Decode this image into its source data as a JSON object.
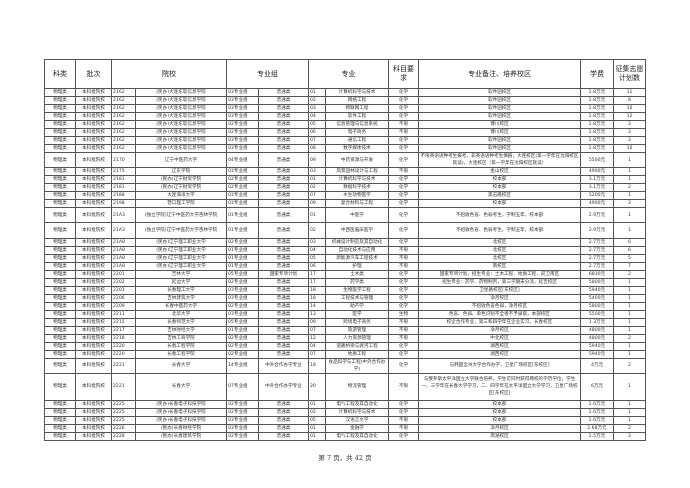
{
  "headers": [
    "科类",
    "批次",
    "院校",
    "专业组",
    "专业",
    "科目要求",
    "专业备注、培养校区",
    "学费",
    "征集志愿计划数"
  ],
  "rows": [
    [
      "物理类",
      "本科批院校",
      "2162",
      "(民办)大连东软信息学院",
      "03专业组",
      "普通类",
      "01",
      "计算机科学与技术",
      "化学",
      "软件园校区",
      "2.8万元",
      "11"
    ],
    [
      "物理类",
      "本科批院校",
      "2162",
      "(民办)大连东软信息学院",
      "03专业组",
      "普通类",
      "02",
      "网络工程",
      "化学",
      "软件园校区",
      "2.8万元",
      "8"
    ],
    [
      "物理类",
      "本科批院校",
      "2162",
      "(民办)大连东软信息学院",
      "03专业组",
      "普通类",
      "03",
      "物联网工程",
      "化学",
      "软件园校区",
      "2.8万元",
      "10"
    ],
    [
      "物理类",
      "本科批院校",
      "2162",
      "(民办)大连东软信息学院",
      "03专业组",
      "普通类",
      "04",
      "软件工程",
      "化学",
      "软件园校区",
      "2.8万元",
      "12"
    ],
    [
      "物理类",
      "本科批院校",
      "2162",
      "(民办)大连东软信息学院",
      "02专业组",
      "普通类",
      "05",
      "信息管理与信息系统",
      "不限",
      "博川校区",
      "2.8万元",
      "3"
    ],
    [
      "物理类",
      "本科批院校",
      "2162",
      "(民办)大连东软信息学院",
      "02专业组",
      "普通类",
      "06",
      "电子商务",
      "不限",
      "博川校区",
      "2.8万元",
      "3"
    ],
    [
      "物理类",
      "本科批院校",
      "2162",
      "(民办)大连东软信息学院",
      "03专业组",
      "普通类",
      "07",
      "通信工程",
      "化学",
      "软件园校区",
      "2.8万元",
      "3"
    ],
    [
      "物理类",
      "本科批院校",
      "2162",
      "(民办)大连东软信息学院",
      "03专业组",
      "普通类",
      "08",
      "数字媒体技术",
      "化学",
      "软件园校区",
      "2.8万元",
      "10"
    ],
    [
      "物理类",
      "本科批院校",
      "2170",
      "辽宁中医药大学",
      "04专业组",
      "普通类",
      "09",
      "中药资源与开发",
      "化学",
      "不限英语语种考生报考，非英语语种考生慎报；大连校区(第一学年在沈阳校区就读)，大连校区（第一学年在沈阳校区就读）",
      "5500元",
      "1"
    ],
    [
      "物理类",
      "本科批院校",
      "2175",
      "辽东学院",
      "03专业组",
      "普通类",
      "03",
      "风景园林设计与工程",
      "不限",
      "金山校区",
      "4900元",
      "1"
    ],
    [
      "物理类",
      "本科批院校",
      "2181",
      "(民办)辽宁财贸学院",
      "02专业组",
      "普通类",
      "01",
      "计算机科学与技术",
      "化学",
      "校本部",
      "3.1万元",
      "1"
    ],
    [
      "物理类",
      "本科批院校",
      "2181",
      "(民办)辽宁财贸学院",
      "02专业组",
      "普通类",
      "02",
      "数据科学技术",
      "化学",
      "校本部",
      "3.1万元",
      "2"
    ],
    [
      "物理类",
      "本科批院校",
      "2188",
      "大连海洋大学",
      "03专业组",
      "普通类",
      "07",
      "水生动物医学",
      "化学",
      "黑石礁校区",
      "5200元",
      "1"
    ],
    [
      "物理类",
      "本科批院校",
      "2198",
      "营口理工学院",
      "03专业组",
      "普通类",
      "09",
      "复合材料与工程",
      "化学",
      "校本部",
      "4900元",
      "3"
    ],
    [
      "物理类",
      "本科批院校",
      "21A3",
      "(独立学院)辽宁中医药大学杏林学院",
      "01专业组",
      "普通类",
      "01",
      "中医学",
      "化学",
      "不招收色盲、色弱考生，学制五年，校本部",
      "2.9万元",
      "1"
    ],
    [
      "物理类",
      "本科批院校",
      "21A3",
      "(独立学院)辽宁中医药大学杏林学院",
      "01专业组",
      "普通类",
      "02",
      "中西医临床医学",
      "化学",
      "不招收色盲、色弱考生，学制五年，校本部",
      "2.9万元",
      "1"
    ],
    [
      "物理类",
      "本科批院校",
      "21A8",
      "(民办)辽宁理工职业大学",
      "02专业组",
      "普通类",
      "03",
      "机械设计制造及其自动化",
      "化学",
      "北校区",
      "2.7万元",
      "6"
    ],
    [
      "物理类",
      "本科批院校",
      "21A8",
      "(民办)辽宁理工职业大学",
      "01专业组",
      "普通类",
      "04",
      "自动化技术与应用",
      "不限",
      "北校区",
      "2.7万元",
      "6"
    ],
    [
      "物理类",
      "本科批院校",
      "21A8",
      "(民办)辽宁理工职业大学",
      "01专业组",
      "普通类",
      "05",
      "新能源汽车工程技术",
      "不限",
      "北校区",
      "2.7万元",
      "5"
    ],
    [
      "物理类",
      "本科批院校",
      "21A8",
      "(民办)辽宁理工职业大学",
      "01专业组",
      "普通类",
      "06",
      "护理",
      "不限",
      "南校区",
      "2.7万元",
      "7"
    ],
    [
      "物理类",
      "本科批院校",
      "2201",
      "吉林大学",
      "05专业组",
      "国家专项计划",
      "17",
      "土木类",
      "化学",
      "国家专项计划，招生专业：土木工程、地质工程，前卫南区",
      "6830元",
      "2"
    ],
    [
      "物理类",
      "本科批院校",
      "2202",
      "延边大学",
      "02专业组",
      "普通类",
      "17",
      "药学类",
      "化学",
      "招生专业：药学、药物制剂，第三学期末分流，延吉校区",
      "5800元",
      "1"
    ],
    [
      "物理类",
      "本科批院校",
      "2203",
      "长春理工大学",
      "03专业组",
      "普通类",
      "18",
      "生物医学工程",
      "化学",
      "卫星路校区[东校区]",
      "5940元",
      "1"
    ],
    [
      "物理类",
      "本科批院校",
      "2206",
      "吉林建筑大学",
      "03专业组",
      "普通类",
      "18",
      "工程技术与管理",
      "化学",
      "净月校区",
      "5400元",
      "1"
    ],
    [
      "物理类",
      "本科批院校",
      "2209",
      "长春中医药大学",
      "02专业组",
      "普通类",
      "14",
      "助产学",
      "化学",
      "不招收色盲色弱，净月校区",
      "5800元",
      "1"
    ],
    [
      "物理类",
      "本科批院校",
      "2211",
      "北华大学",
      "03专业组",
      "普通类",
      "13",
      "医学",
      "生物",
      "色盲、色弱、单色识别不全者不予录取，本部校区",
      "5500元",
      "1"
    ],
    [
      "物理类",
      "本科批院校",
      "2215",
      "长春师范大学",
      "05专业组",
      "普通类",
      "09",
      "跨境电子商务",
      "不限",
      "校企合作专业，第三和四学年在企业实习，长春校区",
      "1.3万元",
      "1"
    ],
    [
      "物理类",
      "本科批院校",
      "2217",
      "吉林财经大学",
      "01专业组",
      "普通类",
      "07",
      "旅游管理",
      "不限",
      "净月校区",
      "4800元",
      "1"
    ],
    [
      "物理类",
      "本科批院校",
      "2218",
      "吉林工商学院",
      "02专业组",
      "普通类",
      "12",
      "人力资源管理",
      "不限",
      "中北校区",
      "4800元",
      "2"
    ],
    [
      "物理类",
      "本科批院校",
      "2220",
      "长春工程学院",
      "02专业组",
      "普通类",
      "04",
      "道路桥梁与渡河工程",
      "化学",
      "湖西校区",
      "5940元",
      "1"
    ],
    [
      "物理类",
      "本科批院校",
      "2220",
      "长春工程学院",
      "02专业组",
      "普通类",
      "07",
      "地质工程",
      "化学",
      "湖西校区",
      "5940元",
      "1"
    ],
    [
      "物理类",
      "本科批院校",
      "2221",
      "长春大学",
      "14专业组",
      "中外合作办学专业",
      "18",
      "食品科学与工程(中外合作办学)",
      "化学",
      "与韩国全州大学合作办学，卫星广场校区[东校区]",
      "4万元",
      "2"
    ],
    [
      "物理类",
      "本科批院校",
      "2221",
      "长春大学",
      "07专业组",
      "中外合作办学专业",
      "20",
      "物流管理",
      "不限",
      "与俄罗斯太平洋国立大学联合培养，学生可同时获得两校的学历学位，学生一、三学年在长春大学学习，二、四学年在太平洋国立大学学习，卫星广场校区[东校区]",
      "6万元",
      "1"
    ],
    [
      "物理类",
      "本科批院校",
      "2225",
      "(民办)长春电子科技学院",
      "02专业组",
      "普通类",
      "01",
      "电气工程及其自动化",
      "化学",
      "校本部",
      "2.6万元",
      "1"
    ],
    [
      "物理类",
      "本科批院校",
      "2225",
      "(民办)长春电子科技学院",
      "02专业组",
      "普通类",
      "02",
      "计算机科学与技术",
      "化学",
      "校本部",
      "2.6万元",
      "1"
    ],
    [
      "物理类",
      "本科批院校",
      "2225",
      "(民办)长春电子科技学院",
      "03专业组",
      "普通类",
      "05",
      "汉语言文学",
      "不限",
      "校本部",
      "2.6万元",
      "1"
    ],
    [
      "物理类",
      "本科批院校",
      "2226",
      "(民办)长春财经学院",
      "03专业组",
      "普通类",
      "01",
      "金融学",
      "不限",
      "净月校区",
      "2.68万元",
      "2"
    ],
    [
      "物理类",
      "本科批院校",
      "2228",
      "(民办)长春建筑学院",
      "02专业组",
      "普通类",
      "01",
      "电气工程及其自动化",
      "化学",
      "南湖校区",
      "2.5万元",
      "3"
    ]
  ],
  "footer": "第 7 页，共 42 页"
}
